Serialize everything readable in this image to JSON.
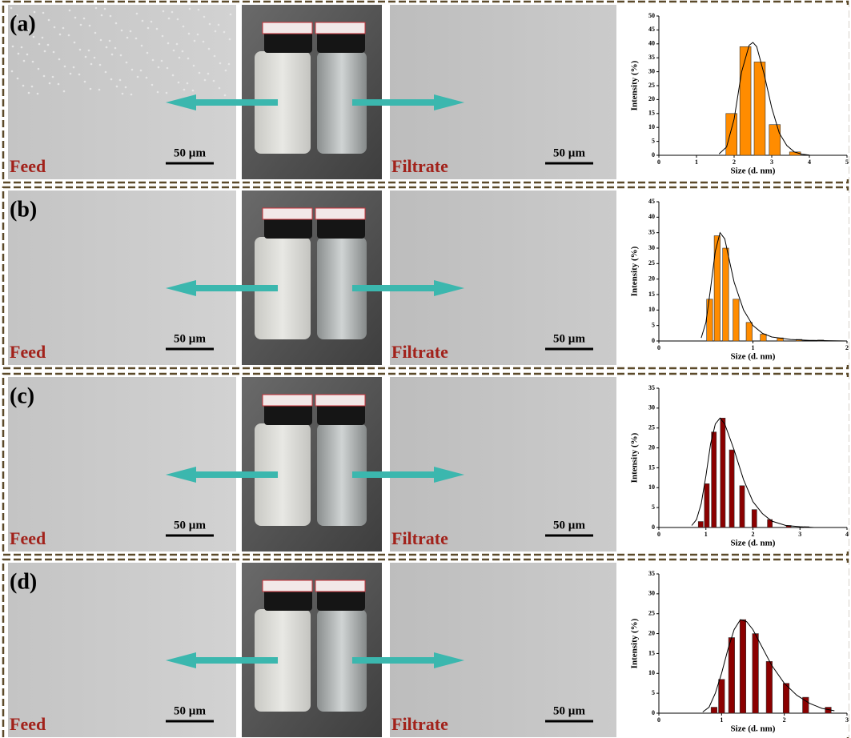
{
  "chart_data": [
    {
      "type": "bar",
      "panel_label": "(a)",
      "feed_label": "Feed",
      "filtrate_label": "Filtrate",
      "scale_bar": "50 µm",
      "xlabel": "Size (d. nm)",
      "ylabel": "Intensity (%)",
      "color": "#ff8c00",
      "x": [
        1.93,
        2.3,
        2.68,
        3.08,
        3.62
      ],
      "values": [
        15,
        39,
        33.5,
        11,
        1.2
      ],
      "curve": {
        "x": [
          1.6,
          1.8,
          2.0,
          2.2,
          2.4,
          2.5,
          2.6,
          2.8,
          3.0,
          3.2,
          3.4,
          3.6,
          3.8,
          4.0
        ],
        "values": [
          0.5,
          3,
          13,
          30,
          39.5,
          40.5,
          39,
          29,
          17,
          8,
          3.5,
          1.2,
          0.4,
          0.1
        ]
      },
      "xlim": [
        0,
        5
      ],
      "xticks": [
        0,
        1,
        2,
        3,
        4,
        5
      ],
      "ylim": [
        0,
        50
      ],
      "yticks": [
        0,
        5,
        10,
        15,
        20,
        25,
        30,
        35,
        40,
        45,
        50
      ]
    },
    {
      "type": "bar",
      "panel_label": "(b)",
      "feed_label": "Feed",
      "filtrate_label": "Filtrate",
      "scale_bar": "50 µm",
      "xlabel": "Size (d. nm)",
      "ylabel": "Intensity (%)",
      "color": "#ff8c00",
      "x": [
        0.54,
        0.62,
        0.71,
        0.82,
        0.96,
        1.11,
        1.29,
        1.49,
        1.72
      ],
      "values": [
        13.5,
        34,
        30,
        13.5,
        6,
        2.2,
        1,
        0.5,
        0.3
      ],
      "curve": {
        "x": [
          0.45,
          0.5,
          0.55,
          0.6,
          0.65,
          0.7,
          0.75,
          0.8,
          0.9,
          1.0,
          1.1,
          1.2,
          1.4,
          1.6,
          1.8,
          2.0
        ],
        "values": [
          1,
          6,
          17,
          29,
          35,
          33,
          26,
          19,
          10,
          5,
          2.5,
          1.3,
          0.5,
          0.2,
          0.1,
          0
        ]
      },
      "xlim": [
        0,
        2
      ],
      "xticks": [
        0,
        1,
        2
      ],
      "ylim": [
        0,
        45
      ],
      "yticks": [
        0,
        5,
        10,
        15,
        20,
        25,
        30,
        35,
        40,
        45
      ]
    },
    {
      "type": "bar",
      "panel_label": "(c)",
      "feed_label": "Feed",
      "filtrate_label": "Filtrate",
      "scale_bar": "50 µm",
      "xlabel": "Size (d. nm)",
      "ylabel": "Intensity (%)",
      "color": "#8b0000",
      "x": [
        0.89,
        1.02,
        1.17,
        1.36,
        1.55,
        1.77,
        2.03,
        2.36,
        2.76,
        3.14
      ],
      "values": [
        1.5,
        11,
        24,
        27.5,
        19.5,
        10.5,
        4.5,
        2,
        0.5,
        0.2
      ],
      "curve": {
        "x": [
          0.7,
          0.8,
          0.9,
          1.0,
          1.1,
          1.2,
          1.3,
          1.4,
          1.6,
          1.8,
          2.0,
          2.2,
          2.4,
          2.7,
          3.0,
          3.3
        ],
        "values": [
          0.5,
          2,
          6,
          13,
          21,
          26,
          27.5,
          26,
          19.5,
          12,
          6.5,
          3.5,
          1.6,
          0.5,
          0.2,
          0
        ]
      },
      "xlim": [
        0,
        4
      ],
      "xticks": [
        0,
        1,
        2,
        3,
        4
      ],
      "ylim": [
        0,
        35
      ],
      "yticks": [
        0,
        5,
        10,
        15,
        20,
        25,
        30,
        35
      ]
    },
    {
      "type": "bar",
      "panel_label": "(d)",
      "feed_label": "Feed",
      "filtrate_label": "Filtrate",
      "scale_bar": "50 µm",
      "xlabel": "Size (d. nm)",
      "ylabel": "Intensity (%)",
      "color": "#8b0000",
      "x": [
        0.88,
        1.0,
        1.16,
        1.34,
        1.54,
        1.76,
        2.03,
        2.34,
        2.7
      ],
      "values": [
        1.5,
        8.5,
        19,
        23.5,
        20,
        13,
        7.5,
        4,
        1.5
      ],
      "curve": {
        "x": [
          0.7,
          0.8,
          0.9,
          1.0,
          1.1,
          1.2,
          1.3,
          1.4,
          1.5,
          1.6,
          1.8,
          2.0,
          2.2,
          2.4,
          2.6,
          2.8
        ],
        "values": [
          0.3,
          1.5,
          5,
          10,
          16,
          21,
          23.5,
          23,
          21,
          18,
          12,
          7.5,
          4.5,
          2.5,
          1.2,
          0.6
        ]
      },
      "xlim": [
        0,
        3
      ],
      "xticks": [
        0,
        1,
        2,
        3
      ],
      "ylim": [
        0,
        35
      ],
      "yticks": [
        0,
        5,
        10,
        15,
        20,
        25,
        30,
        35
      ]
    }
  ]
}
